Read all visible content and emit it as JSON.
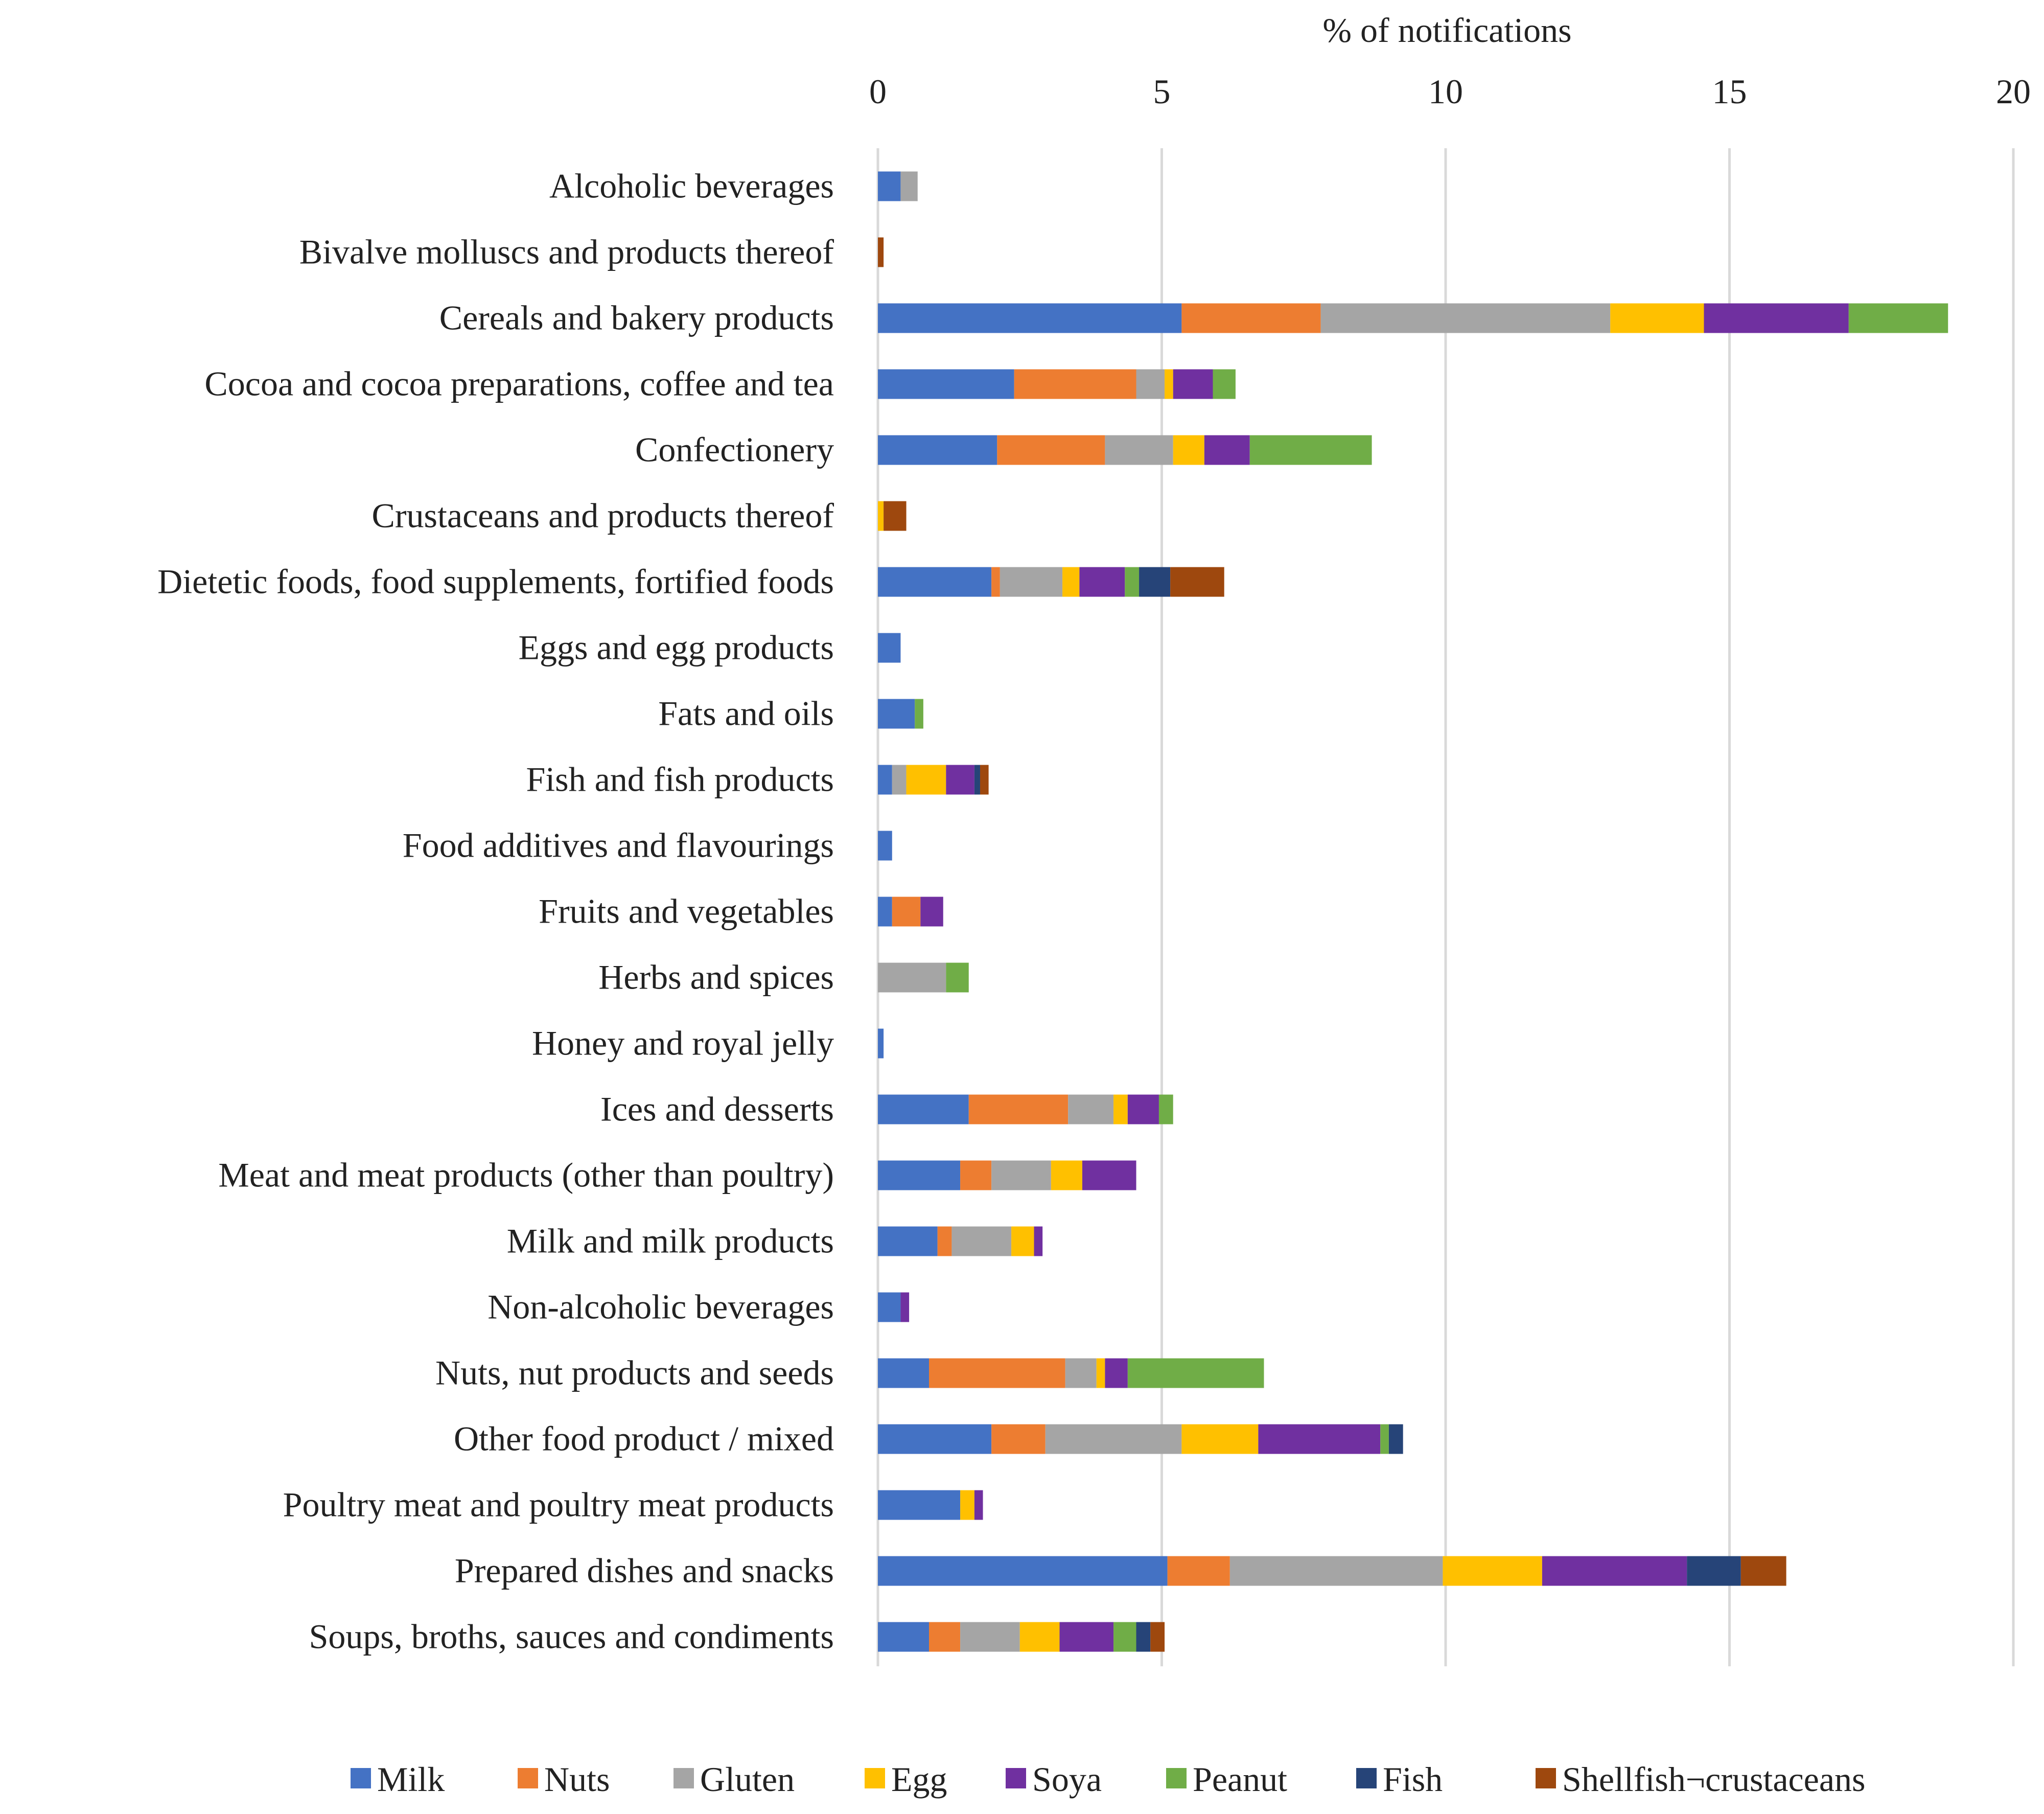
{
  "chart_data": {
    "type": "bar",
    "orientation": "horizontal",
    "stacked": true,
    "xlabel": "% of notifications",
    "xlim": [
      0,
      20
    ],
    "xticks": [
      0,
      5,
      10,
      15,
      20
    ],
    "grid": true,
    "legend_position": "bottom",
    "categories": [
      "Alcoholic beverages",
      "Bivalve molluscs and products thereof",
      "Cereals and bakery products",
      "Cocoa and cocoa preparations, coffee and tea",
      "Confectionery",
      "Crustaceans and products thereof",
      "Dietetic foods, food supplements, fortified foods",
      "Eggs and egg products",
      "Fats and oils",
      "Fish and fish products",
      "Food additives and flavourings",
      "Fruits and vegetables",
      "Herbs and spices",
      "Honey and royal jelly",
      "Ices and desserts",
      "Meat and meat products (other than poultry)",
      "Milk and milk products",
      "Non-alcoholic beverages",
      "Nuts, nut products and seeds",
      "Other food product / mixed",
      "Poultry meat and poultry meat products",
      "Prepared dishes and snacks",
      "Soups, broths, sauces and condiments"
    ],
    "series": [
      {
        "name": "Milk",
        "color": "#4472C4",
        "values": [
          0.4,
          0,
          5.35,
          2.4,
          2.1,
          0,
          2.0,
          0.4,
          0.65,
          0.25,
          0.25,
          0.25,
          0,
          0.1,
          1.6,
          1.45,
          1.05,
          0.4,
          0.9,
          2.0,
          1.45,
          5.1,
          0.9
        ]
      },
      {
        "name": "Nuts",
        "color": "#ED7D31",
        "values": [
          0,
          0,
          2.45,
          2.15,
          1.9,
          0,
          0.15,
          0,
          0,
          0,
          0,
          0.5,
          0,
          0,
          1.75,
          0.55,
          0.25,
          0,
          2.4,
          0.95,
          0,
          1.1,
          0.55
        ]
      },
      {
        "name": "Gluten",
        "color": "#A5A5A5",
        "values": [
          0.3,
          0,
          5.1,
          0.5,
          1.2,
          0,
          1.1,
          0,
          0,
          0.25,
          0,
          0,
          1.2,
          0,
          0.8,
          1.05,
          1.05,
          0,
          0.55,
          2.4,
          0,
          3.75,
          1.05
        ]
      },
      {
        "name": "Egg",
        "color": "#FFC000",
        "values": [
          0,
          0,
          1.65,
          0.15,
          0.55,
          0.1,
          0.3,
          0,
          0,
          0.7,
          0,
          0,
          0,
          0,
          0.25,
          0.55,
          0.4,
          0,
          0.15,
          1.35,
          0.25,
          1.75,
          0.7
        ]
      },
      {
        "name": "Soya",
        "color": "#7030A0",
        "values": [
          0,
          0,
          2.55,
          0.7,
          0.8,
          0,
          0.8,
          0,
          0,
          0.5,
          0,
          0.4,
          0,
          0,
          0.55,
          0.95,
          0.15,
          0.15,
          0.4,
          2.15,
          0.15,
          2.55,
          0.95
        ]
      },
      {
        "name": "Peanut",
        "color": "#70AD47",
        "values": [
          0,
          0,
          1.75,
          0.4,
          2.15,
          0,
          0.25,
          0,
          0.15,
          0,
          0,
          0,
          0.4,
          0,
          0.25,
          0,
          0,
          0,
          2.4,
          0.15,
          0,
          0,
          0.4
        ]
      },
      {
        "name": "Fish",
        "color": "#264478",
        "values": [
          0,
          0,
          0,
          0,
          0,
          0,
          0.55,
          0,
          0,
          0.1,
          0,
          0,
          0,
          0,
          0,
          0,
          0,
          0,
          0,
          0.25,
          0,
          0.95,
          0.25
        ]
      },
      {
        "name": "Shellfish¬crustaceans",
        "color": "#9E480E",
        "values": [
          0,
          0.1,
          0,
          0,
          0,
          0.4,
          0.95,
          0,
          0,
          0.15,
          0,
          0,
          0,
          0,
          0,
          0,
          0,
          0,
          0,
          0,
          0,
          0.8,
          0.25
        ]
      }
    ]
  }
}
